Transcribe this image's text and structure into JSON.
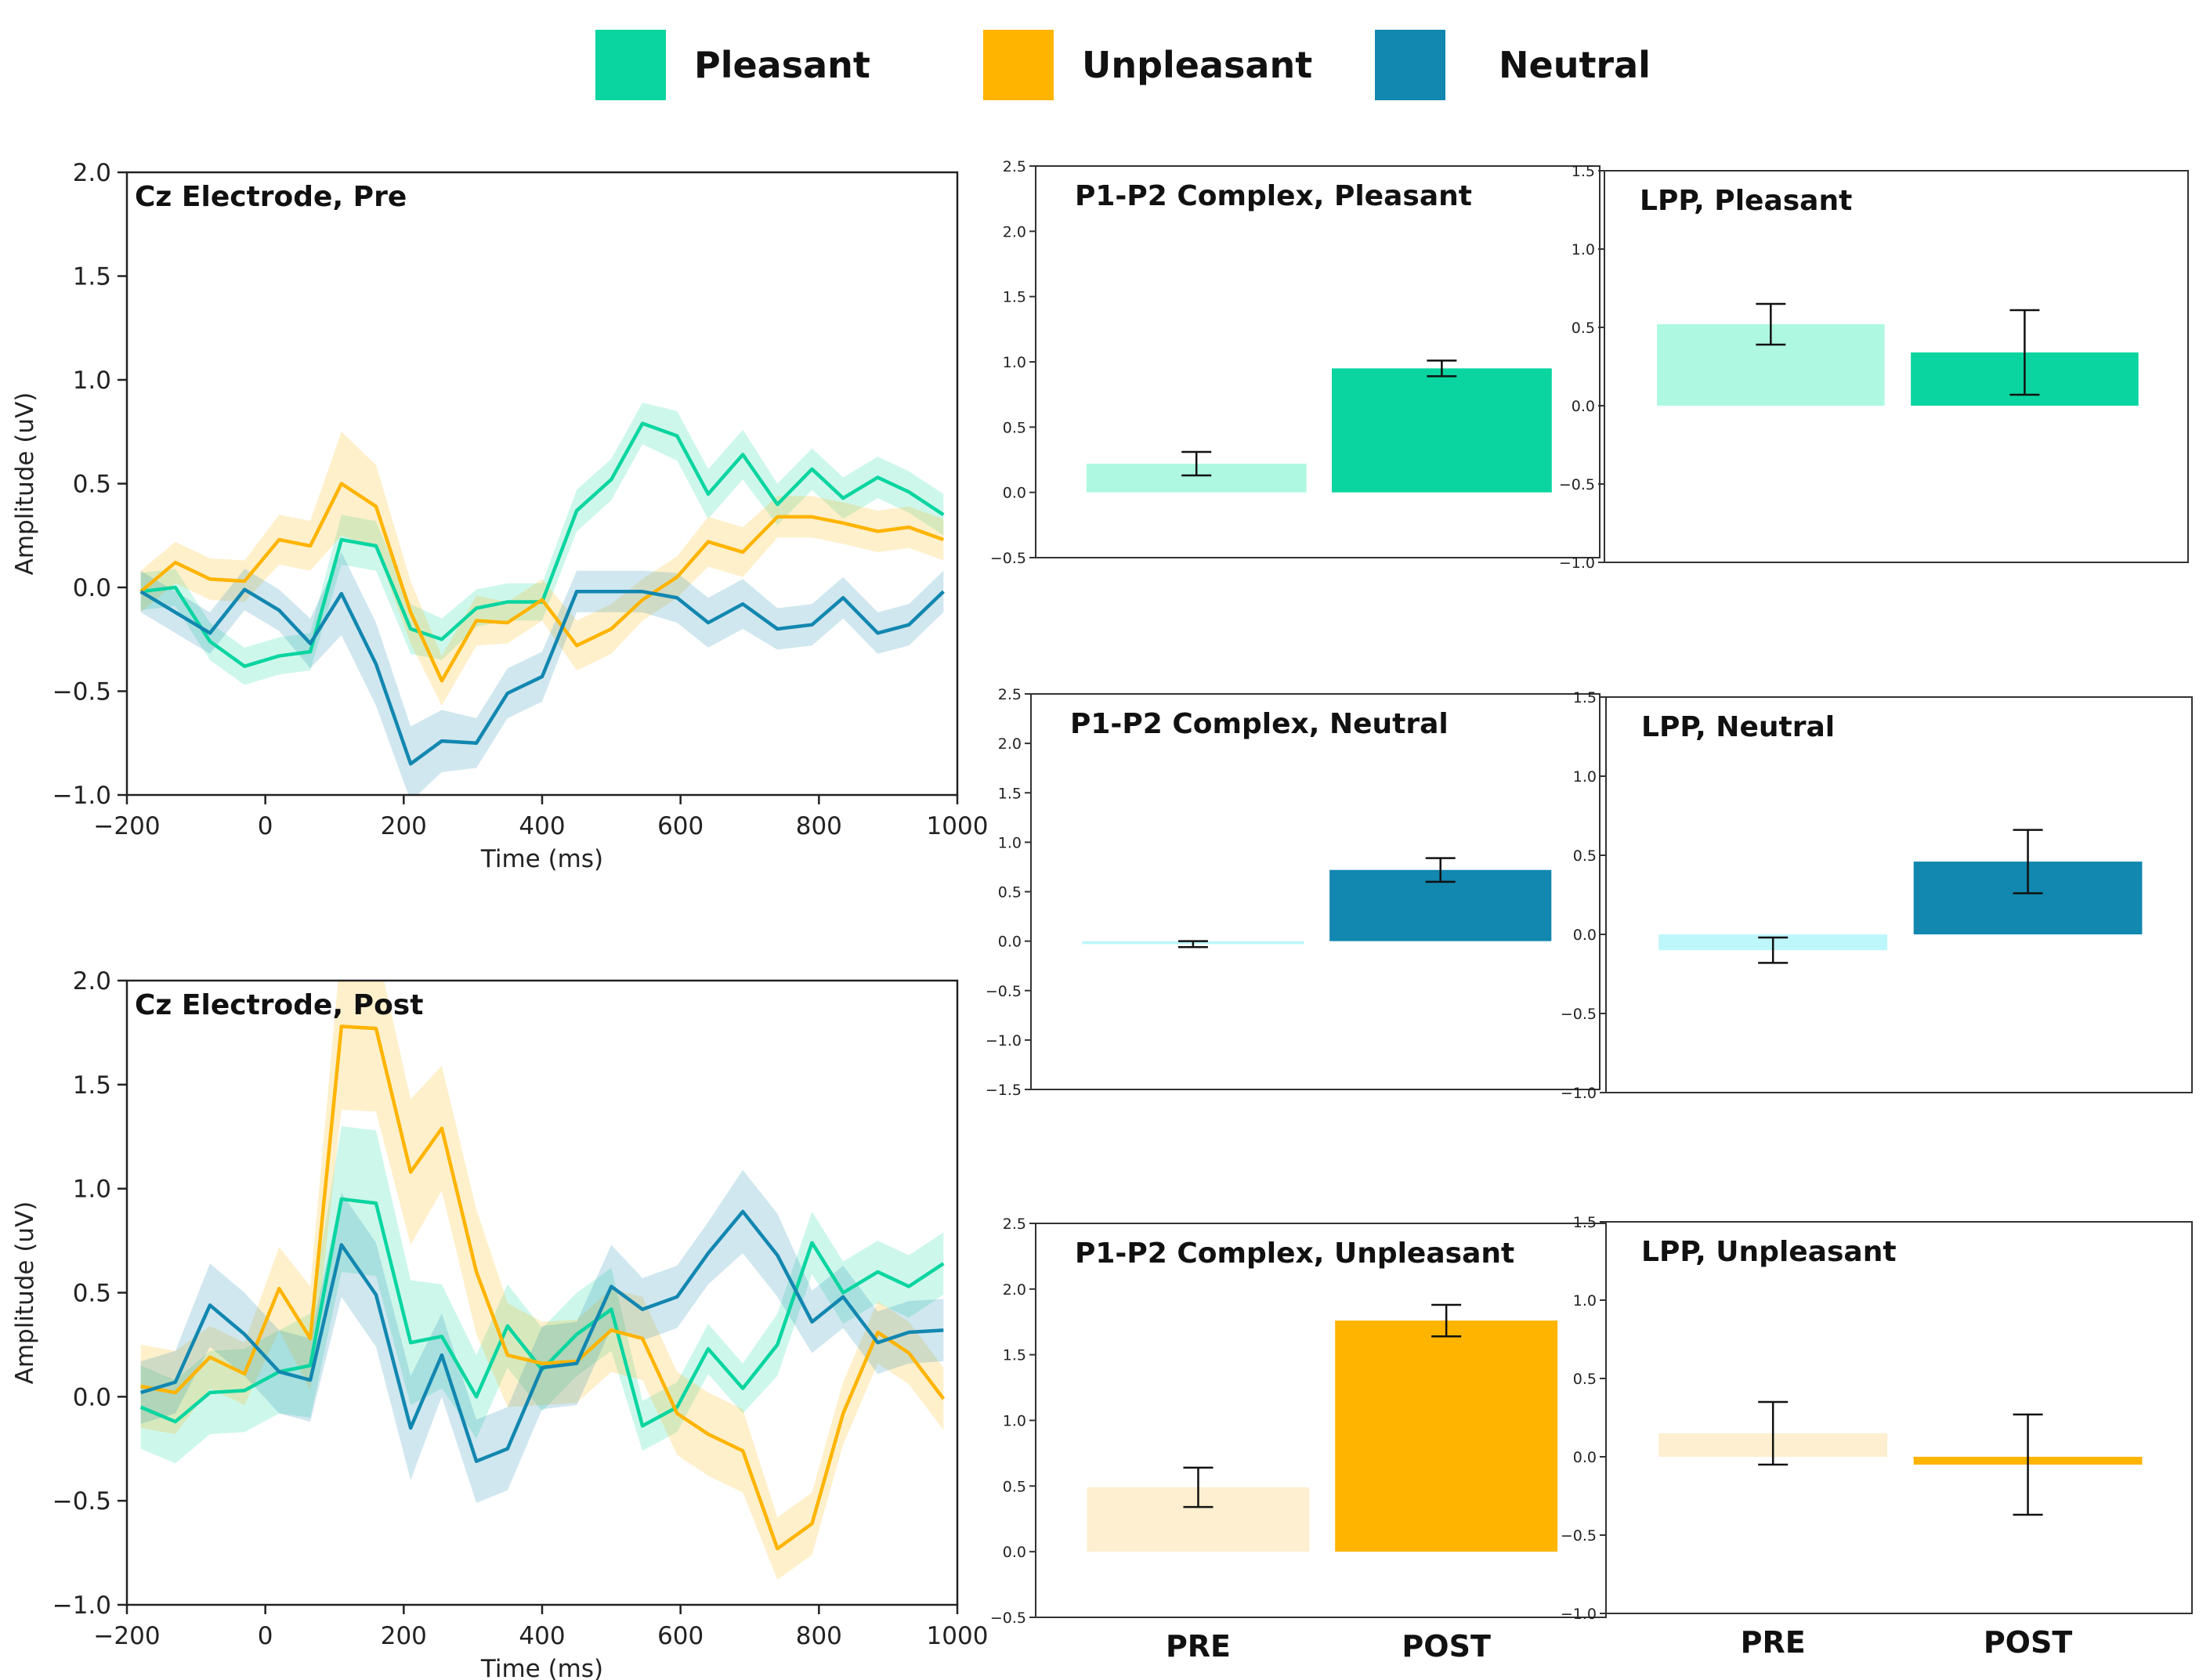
{
  "legend": {
    "items": [
      {
        "label": "Pleasant",
        "color": "#0ad5a0"
      },
      {
        "label": "Unpleasant",
        "color": "#ffb400"
      },
      {
        "label": "Neutral",
        "color": "#1287b0"
      }
    ]
  },
  "chart_data": [
    {
      "type": "line",
      "title": "Cz Electrode, Pre",
      "xlabel": "Time (ms)",
      "ylabel": "Amplitude (uV)",
      "xlim": [
        -200,
        1000
      ],
      "ylim": [
        -1.0,
        2.0
      ],
      "xticks": [
        -200,
        0,
        200,
        400,
        600,
        800,
        1000
      ],
      "xtick_labels": [
        "−200",
        "0",
        "200",
        "400",
        "600",
        "800",
        "1000"
      ],
      "yticks": [
        -1.0,
        -0.5,
        0.0,
        0.5,
        1.0,
        1.5,
        2.0
      ],
      "ytick_labels": [
        "−1.0",
        "−0.5",
        "0.0",
        "0.5",
        "1.0",
        "1.5",
        "2.0"
      ],
      "x": [
        -180,
        -130,
        -80,
        -30,
        20,
        65,
        110,
        160,
        210,
        255,
        305,
        350,
        400,
        450,
        500,
        545,
        595,
        640,
        690,
        740,
        790,
        835,
        885,
        930,
        980
      ],
      "series": [
        {
          "name": "Pleasant",
          "color": "#0ad5a0",
          "values": [
            -0.02,
            0.0,
            -0.26,
            -0.38,
            -0.33,
            -0.31,
            0.23,
            0.2,
            -0.2,
            -0.25,
            -0.1,
            -0.07,
            -0.07,
            0.37,
            0.52,
            0.79,
            0.73,
            0.45,
            0.64,
            0.4,
            0.57,
            0.43,
            0.53,
            0.46,
            0.35
          ],
          "band": [
            0.09,
            0.09,
            0.09,
            0.09,
            0.09,
            0.09,
            0.12,
            0.12,
            0.12,
            0.1,
            0.09,
            0.09,
            0.09,
            0.1,
            0.1,
            0.1,
            0.12,
            0.12,
            0.12,
            0.1,
            0.1,
            0.1,
            0.1,
            0.1,
            0.1
          ]
        },
        {
          "name": "Unpleasant",
          "color": "#ffb400",
          "values": [
            -0.02,
            0.12,
            0.04,
            0.03,
            0.23,
            0.2,
            0.5,
            0.39,
            -0.12,
            -0.45,
            -0.16,
            -0.17,
            -0.06,
            -0.28,
            -0.2,
            -0.06,
            0.05,
            0.22,
            0.17,
            0.34,
            0.34,
            0.31,
            0.27,
            0.29,
            0.23
          ],
          "band": [
            0.1,
            0.1,
            0.1,
            0.1,
            0.12,
            0.12,
            0.25,
            0.2,
            0.15,
            0.12,
            0.12,
            0.1,
            0.1,
            0.12,
            0.12,
            0.1,
            0.1,
            0.12,
            0.12,
            0.1,
            0.1,
            0.1,
            0.1,
            0.1,
            0.1
          ]
        },
        {
          "name": "Neutral",
          "color": "#1287b0",
          "values": [
            -0.02,
            -0.12,
            -0.22,
            -0.01,
            -0.11,
            -0.27,
            -0.03,
            -0.37,
            -0.85,
            -0.74,
            -0.75,
            -0.51,
            -0.43,
            -0.02,
            -0.02,
            -0.02,
            -0.05,
            -0.17,
            -0.08,
            -0.2,
            -0.18,
            -0.05,
            -0.22,
            -0.18,
            -0.02
          ]
        },
        {
          "name": "Neutral band",
          "band_only": true,
          "band": [
            0.1,
            0.1,
            0.1,
            0.1,
            0.1,
            0.12,
            0.2,
            0.2,
            0.18,
            0.15,
            0.12,
            0.12,
            0.12,
            0.1,
            0.1,
            0.1,
            0.12,
            0.12,
            0.12,
            0.1,
            0.1,
            0.1,
            0.1,
            0.1,
            0.1
          ]
        }
      ]
    },
    {
      "type": "line",
      "title": "Cz Electrode, Post",
      "xlabel": "Time (ms)",
      "ylabel": "Amplitude (uV)",
      "xlim": [
        -200,
        1000
      ],
      "ylim": [
        -1.0,
        2.0
      ],
      "xticks": [
        -200,
        0,
        200,
        400,
        600,
        800,
        1000
      ],
      "xtick_labels": [
        "−200",
        "0",
        "200",
        "400",
        "600",
        "800",
        "1000"
      ],
      "yticks": [
        -1.0,
        -0.5,
        0.0,
        0.5,
        1.0,
        1.5,
        2.0
      ],
      "ytick_labels": [
        "−1.0",
        "−0.5",
        "0.0",
        "0.5",
        "1.0",
        "1.5",
        "2.0"
      ],
      "x": [
        -180,
        -130,
        -80,
        -30,
        20,
        65,
        110,
        160,
        210,
        255,
        305,
        350,
        400,
        450,
        500,
        545,
        595,
        640,
        690,
        740,
        790,
        835,
        885,
        930,
        980
      ],
      "series": [
        {
          "name": "Pleasant",
          "color": "#0ad5a0",
          "values": [
            -0.05,
            -0.12,
            0.02,
            0.03,
            0.12,
            0.15,
            0.95,
            0.93,
            0.26,
            0.29,
            0.0,
            0.34,
            0.13,
            0.3,
            0.42,
            -0.14,
            -0.05,
            0.23,
            0.04,
            0.25,
            0.74,
            0.5,
            0.6,
            0.53,
            0.64
          ],
          "band": [
            0.2,
            0.2,
            0.2,
            0.2,
            0.2,
            0.25,
            0.35,
            0.35,
            0.3,
            0.25,
            0.2,
            0.2,
            0.2,
            0.2,
            0.2,
            0.12,
            0.12,
            0.12,
            0.12,
            0.15,
            0.15,
            0.15,
            0.15,
            0.15,
            0.15
          ]
        },
        {
          "name": "Unpleasant",
          "color": "#ffb400",
          "values": [
            0.05,
            0.02,
            0.19,
            0.11,
            0.52,
            0.28,
            1.78,
            1.77,
            1.08,
            1.29,
            0.6,
            0.2,
            0.16,
            0.17,
            0.32,
            0.28,
            -0.08,
            -0.18,
            -0.26,
            -0.73,
            -0.61,
            -0.08,
            0.31,
            0.21,
            -0.01
          ],
          "band": [
            0.2,
            0.2,
            0.15,
            0.15,
            0.2,
            0.25,
            0.4,
            0.4,
            0.35,
            0.3,
            0.3,
            0.25,
            0.2,
            0.2,
            0.2,
            0.2,
            0.2,
            0.2,
            0.2,
            0.15,
            0.15,
            0.15,
            0.15,
            0.15,
            0.15
          ]
        },
        {
          "name": "Neutral",
          "color": "#1287b0",
          "values": [
            0.02,
            0.07,
            0.44,
            0.3,
            0.12,
            0.08,
            0.73,
            0.49,
            -0.15,
            0.2,
            -0.31,
            -0.25,
            0.14,
            0.16,
            0.53,
            0.42,
            0.48,
            0.69,
            0.89,
            0.68,
            0.36,
            0.48,
            0.26,
            0.31,
            0.32
          ]
        },
        {
          "name": "Neutral band",
          "band_only": true,
          "band": [
            0.15,
            0.15,
            0.2,
            0.2,
            0.2,
            0.2,
            0.25,
            0.25,
            0.25,
            0.2,
            0.2,
            0.2,
            0.2,
            0.2,
            0.2,
            0.15,
            0.15,
            0.15,
            0.2,
            0.2,
            0.15,
            0.15,
            0.15,
            0.15,
            0.15
          ]
        }
      ]
    },
    {
      "type": "bar",
      "title": "P1-P2 Complex, Pleasant",
      "categories": [
        "PRE",
        "POST"
      ],
      "values": [
        0.22,
        0.95
      ],
      "errors": [
        0.09,
        0.06
      ],
      "colors": [
        "#aef8e2",
        "#0ad5a0"
      ],
      "ylim": [
        -0.5,
        2.5
      ],
      "yticks": [
        -0.5,
        0.0,
        0.5,
        1.0,
        1.5,
        2.0,
        2.5
      ],
      "ytick_labels": [
        "−0.5",
        "0.0",
        "0.5",
        "1.0",
        "1.5",
        "2.0",
        "2.5"
      ]
    },
    {
      "type": "bar",
      "title": "LPP, Pleasant",
      "categories": [
        "PRE",
        "POST"
      ],
      "values": [
        0.52,
        0.34
      ],
      "errors": [
        0.13,
        0.27
      ],
      "colors": [
        "#aef8e2",
        "#0ad5a0"
      ],
      "ylim": [
        -1.0,
        1.5
      ],
      "yticks": [
        -1.0,
        -0.5,
        0.0,
        0.5,
        1.0,
        1.5
      ],
      "ytick_labels": [
        "−1.0",
        "−0.5",
        "0.0",
        "0.5",
        "1.0",
        "1.5"
      ]
    },
    {
      "type": "bar",
      "title": "P1-P2 Complex, Neutral",
      "categories": [
        "PRE",
        "POST"
      ],
      "values": [
        -0.03,
        0.72
      ],
      "errors": [
        0.03,
        0.12
      ],
      "colors": [
        "#bdf6fb",
        "#1287b0"
      ],
      "ylim": [
        -1.5,
        2.5
      ],
      "yticks": [
        -1.5,
        -1.0,
        -0.5,
        0.0,
        0.5,
        1.0,
        1.5,
        2.0,
        2.5
      ],
      "ytick_labels": [
        "−1.5",
        "−1.0",
        "−0.5",
        "0.0",
        "0.5",
        "1.0",
        "1.5",
        "2.0",
        "2.5"
      ]
    },
    {
      "type": "bar",
      "title": "LPP, Neutral",
      "categories": [
        "PRE",
        "POST"
      ],
      "values": [
        -0.1,
        0.46
      ],
      "errors": [
        0.08,
        0.2
      ],
      "colors": [
        "#bdf6fb",
        "#1287b0"
      ],
      "ylim": [
        -1.0,
        1.5
      ],
      "yticks": [
        -1.0,
        -0.5,
        0.0,
        0.5,
        1.0,
        1.5
      ],
      "ytick_labels": [
        "−1.0",
        "−0.5",
        "0.0",
        "0.5",
        "1.0",
        "1.5"
      ]
    },
    {
      "type": "bar",
      "title": "P1-P2 Complex, Unpleasant",
      "categories": [
        "PRE",
        "POST"
      ],
      "values": [
        0.49,
        1.76
      ],
      "errors": [
        0.15,
        0.12
      ],
      "colors": [
        "#fdefcf",
        "#ffb400"
      ],
      "ylim": [
        -0.5,
        2.5
      ],
      "yticks": [
        -0.5,
        0.0,
        0.5,
        1.0,
        1.5,
        2.0,
        2.5
      ],
      "ytick_labels": [
        "−0.5",
        "0.0",
        "0.5",
        "1.0",
        "1.5",
        "2.0",
        "2.5"
      ]
    },
    {
      "type": "bar",
      "title": "LPP, Unpleasant",
      "categories": [
        "PRE",
        "POST"
      ],
      "values": [
        0.15,
        -0.05
      ],
      "errors": [
        0.2,
        0.32
      ],
      "colors": [
        "#fdefcf",
        "#ffb400"
      ],
      "ylim": [
        -1.0,
        1.5
      ],
      "yticks": [
        -1.0,
        -0.5,
        0.0,
        0.5,
        1.0,
        1.5
      ],
      "ytick_labels": [
        "−1.0",
        "−0.5",
        "0.0",
        "0.5",
        "1.0",
        "1.5"
      ]
    }
  ]
}
